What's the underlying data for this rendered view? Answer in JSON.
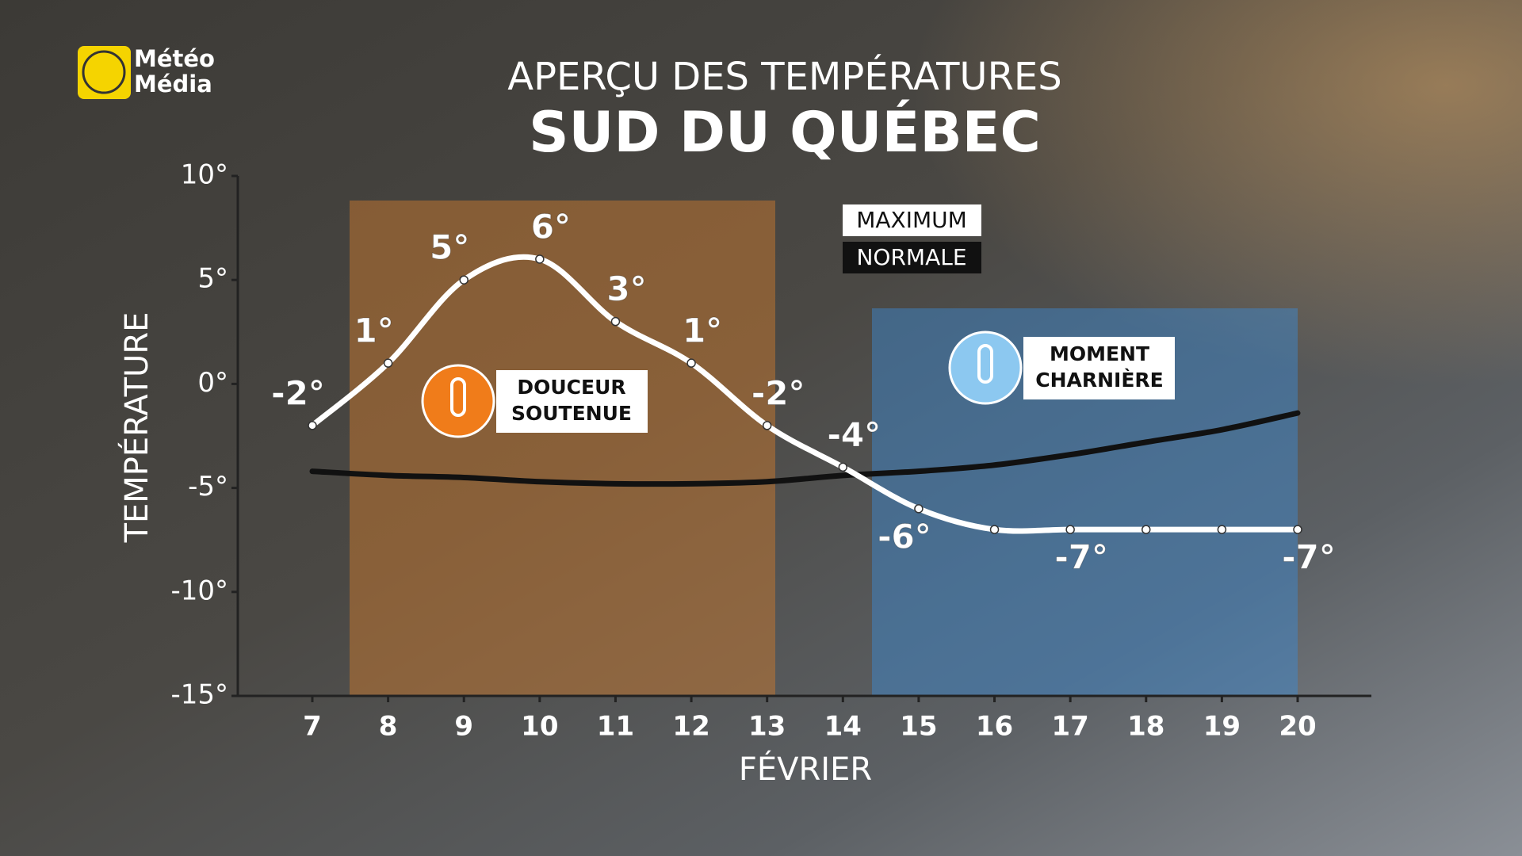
{
  "logo": [
    "Météo",
    "Média"
  ],
  "chart_data": {
    "type": "line",
    "title": "APERÇU DES TEMPÉRATURES",
    "subtitle": "SUD DU QUÉBEC",
    "ylabel": "TEMPÉRATURE",
    "xlabel": "FÉVRIER",
    "categories": [
      "7",
      "8",
      "9",
      "10",
      "11",
      "12",
      "13",
      "14",
      "15",
      "16",
      "17",
      "18",
      "19",
      "20"
    ],
    "series": [
      {
        "name": "MAXIMUM",
        "color": "#ffffff",
        "values": [
          -2,
          1,
          5,
          6,
          3,
          1,
          -2,
          -4,
          -6,
          -7,
          -7,
          -7,
          -7,
          -7
        ],
        "value_labels": [
          "-2°",
          "1°",
          "5°",
          "6°",
          "3°",
          "1°",
          "-2°",
          "-4°",
          "-6°",
          null,
          "-7°",
          null,
          null,
          "-7°"
        ]
      },
      {
        "name": "NORMALE",
        "color": "#111111",
        "values": [
          -4.2,
          -4.4,
          -4.5,
          -4.7,
          -4.8,
          -4.8,
          -4.7,
          -4.4,
          -4.2,
          -3.9,
          -3.4,
          -2.8,
          -2.2,
          -1.4
        ]
      }
    ],
    "ylim": [
      -15,
      10
    ],
    "yticks": [
      {
        "value": -15,
        "label": "-15°"
      },
      {
        "value": -10,
        "label": "-10°"
      },
      {
        "value": -5,
        "label": "-5°"
      },
      {
        "value": 0,
        "label": "0°"
      },
      {
        "value": 5,
        "label": "5°"
      },
      {
        "value": 10,
        "label": "10°"
      }
    ],
    "annotations": [
      [
        "DOUCEUR",
        "SOUTENUE"
      ],
      [
        "MOMENT",
        "CHARNIÈRE"
      ]
    ]
  }
}
